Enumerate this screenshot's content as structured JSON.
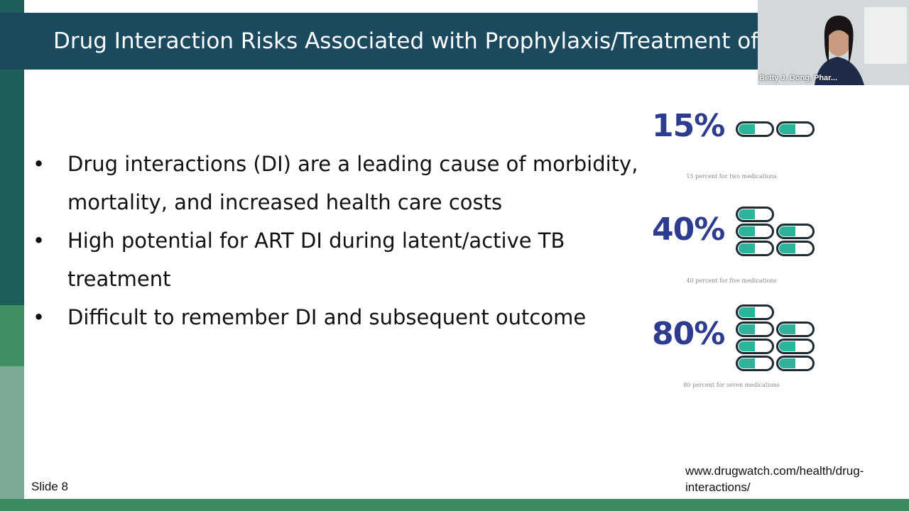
{
  "slide": {
    "title": "Drug Interaction Risks Associated with Prophylaxis/Treatment of",
    "bullets": [
      "Drug interactions (DI) are a leading cause of morbidity, mortality, and increased health care costs",
      "High potential for ART DI during latent/active TB treatment",
      "Difficult to remember DI and subsequent outcome"
    ],
    "infographic": [
      {
        "percent": "15%",
        "caption": "15 percent for two medications"
      },
      {
        "percent": "40%",
        "caption": "40 percent for five medications"
      },
      {
        "percent": "80%",
        "caption": "80 percent for seven medications"
      }
    ],
    "slide_number": "Slide 8",
    "source": "www.drugwatch.com/health/drug-interactions/"
  },
  "video": {
    "speaker": "Betty J. Dong, Phar..."
  }
}
